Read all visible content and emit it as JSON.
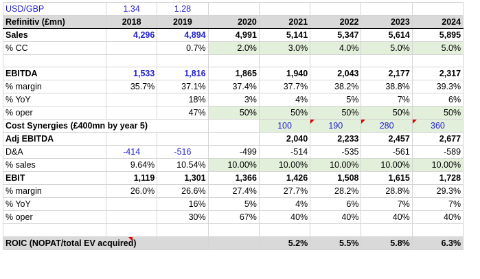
{
  "fx": {
    "label": "USD/GBP",
    "v2018": "1.34",
    "v2019": "1.28"
  },
  "header": {
    "label": "Refinitiv (£mn)",
    "years": [
      "2018",
      "2019",
      "2020",
      "2021",
      "2022",
      "2023",
      "2024"
    ]
  },
  "sales": {
    "label": "Sales",
    "values": [
      "4,296",
      "4,894",
      "4,991",
      "5,141",
      "5,347",
      "5,614",
      "5,895"
    ]
  },
  "cc": {
    "label": "% CC",
    "values": [
      "",
      "0.7%",
      "2.0%",
      "3.0%",
      "4.0%",
      "5.0%",
      "5.0%"
    ]
  },
  "ebitda": {
    "label": "EBITDA",
    "values": [
      "1,533",
      "1,816",
      "1,865",
      "1,940",
      "2,043",
      "2,177",
      "2,317"
    ]
  },
  "ebitda_margin": {
    "label": "% margin",
    "values": [
      "35.7%",
      "37.1%",
      "37.4%",
      "37.7%",
      "38.2%",
      "38.8%",
      "39.3%"
    ]
  },
  "ebitda_yoy": {
    "label": "% YoY",
    "values": [
      "",
      "18%",
      "3%",
      "4%",
      "5%",
      "7%",
      "6%"
    ]
  },
  "ebitda_oper": {
    "label": "% oper",
    "values": [
      "",
      "47%",
      "50%",
      "50%",
      "50%",
      "50%",
      "50%"
    ]
  },
  "synergies": {
    "label": "Cost Synergies (£400mn by year 5)",
    "values": [
      "",
      "",
      "",
      "100",
      "190",
      "280",
      "360"
    ]
  },
  "adj_ebitda": {
    "label": "Adj EBITDA",
    "values": [
      "",
      "",
      "",
      "2,040",
      "2,233",
      "2,457",
      "2,677"
    ]
  },
  "da": {
    "label": "D&A",
    "values": [
      "-414",
      "-516",
      "-499",
      "-514",
      "-535",
      "-561",
      "-589"
    ]
  },
  "da_sales": {
    "label": "% sales",
    "values": [
      "9.64%",
      "10.54%",
      "10.00%",
      "10.00%",
      "10.00%",
      "10.00%",
      "10.00%"
    ]
  },
  "ebit": {
    "label": "EBIT",
    "values": [
      "1,119",
      "1,301",
      "1,366",
      "1,426",
      "1,508",
      "1,615",
      "1,728"
    ]
  },
  "ebit_margin": {
    "label": "% margin",
    "values": [
      "26.0%",
      "26.6%",
      "27.4%",
      "27.7%",
      "28.2%",
      "28.8%",
      "29.3%"
    ]
  },
  "ebit_yoy": {
    "label": "% YoY",
    "values": [
      "",
      "16%",
      "5%",
      "4%",
      "6%",
      "7%",
      "7%"
    ]
  },
  "ebit_oper": {
    "label": "% oper",
    "values": [
      "",
      "30%",
      "67%",
      "40%",
      "40%",
      "40%",
      "40%"
    ]
  },
  "roic": {
    "label": "ROIC (NOPAT/total EV acquired)",
    "values": [
      "",
      "",
      "",
      "5.2%",
      "5.5%",
      "5.8%",
      "6.3%"
    ]
  },
  "colors": {
    "input_blue": "#1f1fd2",
    "header_grey": "#d9d9d9",
    "assumption_green": "#e2efda",
    "comment_red": "#e00000"
  }
}
